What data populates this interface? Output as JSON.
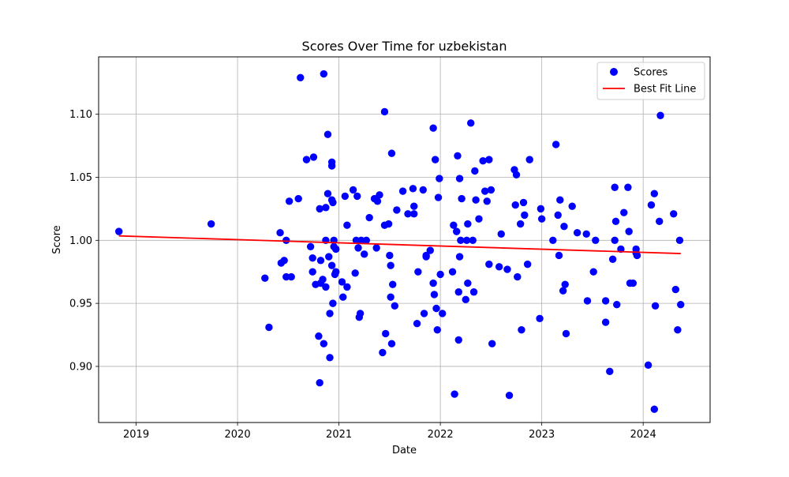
{
  "chart_data": {
    "type": "scatter",
    "title": "Scores Over Time for uzbekistan",
    "xlabel": "Date",
    "ylabel": "Score",
    "xlim": [
      2018.63,
      2024.66
    ],
    "ylim": [
      0.8555,
      1.1455
    ],
    "xticks": [
      2019,
      2020,
      2021,
      2022,
      2023,
      2024
    ],
    "xtick_labels": [
      "2019",
      "2020",
      "2021",
      "2022",
      "2023",
      "2024"
    ],
    "yticks": [
      0.9,
      0.95,
      1.0,
      1.05,
      1.1
    ],
    "ytick_labels": [
      "0.90",
      "0.95",
      "1.00",
      "1.05",
      "1.10"
    ],
    "grid": true,
    "legend_position": "top-right",
    "legend": [
      {
        "label": "Scores",
        "marker": "circle",
        "color": "#0000ff"
      },
      {
        "label": "Best Fit Line",
        "marker": "line",
        "color": "#ff0000"
      }
    ],
    "series": [
      {
        "name": "Scores",
        "kind": "scatter",
        "color": "#0000ff",
        "points": [
          [
            2018.83,
            1.007
          ],
          [
            2019.74,
            1.013
          ],
          [
            2020.27,
            0.97
          ],
          [
            2020.31,
            0.931
          ],
          [
            2020.42,
            1.006
          ],
          [
            2020.43,
            0.982
          ],
          [
            2020.46,
            0.984
          ],
          [
            2020.48,
            1.0
          ],
          [
            2020.48,
            0.971
          ],
          [
            2020.51,
            1.031
          ],
          [
            2020.53,
            0.971
          ],
          [
            2020.6,
            1.033
          ],
          [
            2020.62,
            1.129
          ],
          [
            2020.68,
            1.064
          ],
          [
            2020.72,
            0.995
          ],
          [
            2020.74,
            0.975
          ],
          [
            2020.74,
            0.986
          ],
          [
            2020.75,
            1.066
          ],
          [
            2020.77,
            0.965
          ],
          [
            2020.8,
            0.924
          ],
          [
            2020.81,
            0.887
          ],
          [
            2020.81,
            1.025
          ],
          [
            2020.82,
            0.966
          ],
          [
            2020.82,
            0.984
          ],
          [
            2020.84,
            0.969
          ],
          [
            2020.85,
            0.918
          ],
          [
            2020.85,
            1.132
          ],
          [
            2020.87,
            0.963
          ],
          [
            2020.87,
            1.026
          ],
          [
            2020.87,
            1.0
          ],
          [
            2020.89,
            1.084
          ],
          [
            2020.89,
            1.037
          ],
          [
            2020.9,
            0.987
          ],
          [
            2020.91,
            0.907
          ],
          [
            2020.91,
            0.942
          ],
          [
            2020.93,
            1.062
          ],
          [
            2020.93,
            1.059
          ],
          [
            2020.93,
            1.032
          ],
          [
            2020.93,
            0.98
          ],
          [
            2020.94,
            1.03
          ],
          [
            2020.94,
            0.95
          ],
          [
            2020.95,
            0.995
          ],
          [
            2020.95,
            1.0
          ],
          [
            2020.96,
            0.973
          ],
          [
            2020.97,
            0.975
          ],
          [
            2020.97,
            0.993
          ],
          [
            2021.03,
            0.967
          ],
          [
            2021.04,
            0.955
          ],
          [
            2021.06,
            1.035
          ],
          [
            2021.08,
            0.963
          ],
          [
            2021.08,
            1.012
          ],
          [
            2021.14,
            1.04
          ],
          [
            2021.16,
            0.974
          ],
          [
            2021.17,
            1.0
          ],
          [
            2021.18,
            1.035
          ],
          [
            2021.19,
            0.994
          ],
          [
            2021.2,
            0.939
          ],
          [
            2021.21,
            0.942
          ],
          [
            2021.22,
            1.0
          ],
          [
            2021.25,
            0.989
          ],
          [
            2021.27,
            1.0
          ],
          [
            2021.3,
            1.018
          ],
          [
            2021.35,
            1.033
          ],
          [
            2021.37,
            0.994
          ],
          [
            2021.38,
            1.031
          ],
          [
            2021.4,
            1.036
          ],
          [
            2021.43,
            0.911
          ],
          [
            2021.45,
            1.102
          ],
          [
            2021.45,
            1.012
          ],
          [
            2021.46,
            0.926
          ],
          [
            2021.49,
            1.013
          ],
          [
            2021.5,
            0.988
          ],
          [
            2021.51,
            0.98
          ],
          [
            2021.51,
            0.955
          ],
          [
            2021.52,
            1.069
          ],
          [
            2021.52,
            0.918
          ],
          [
            2021.53,
            0.965
          ],
          [
            2021.55,
            0.948
          ],
          [
            2021.57,
            1.024
          ],
          [
            2021.63,
            1.039
          ],
          [
            2021.68,
            1.021
          ],
          [
            2021.73,
            1.041
          ],
          [
            2021.74,
            1.021
          ],
          [
            2021.74,
            1.027
          ],
          [
            2021.77,
            0.934
          ],
          [
            2021.78,
            0.975
          ],
          [
            2021.83,
            1.04
          ],
          [
            2021.84,
            0.942
          ],
          [
            2021.86,
            0.988
          ],
          [
            2021.86,
            0.987
          ],
          [
            2021.9,
            0.992
          ],
          [
            2021.93,
            1.089
          ],
          [
            2021.93,
            0.966
          ],
          [
            2021.94,
            0.957
          ],
          [
            2021.95,
            1.064
          ],
          [
            2021.96,
            0.946
          ],
          [
            2021.97,
            0.929
          ],
          [
            2021.98,
            1.034
          ],
          [
            2021.99,
            1.049
          ],
          [
            2022.0,
            0.973
          ],
          [
            2022.02,
            0.942
          ],
          [
            2022.12,
            0.975
          ],
          [
            2022.13,
            1.012
          ],
          [
            2022.14,
            0.878
          ],
          [
            2022.16,
            1.007
          ],
          [
            2022.17,
            1.067
          ],
          [
            2022.18,
            0.959
          ],
          [
            2022.18,
            0.921
          ],
          [
            2022.19,
            1.049
          ],
          [
            2022.19,
            0.987
          ],
          [
            2022.2,
            1.0
          ],
          [
            2022.21,
            1.033
          ],
          [
            2022.25,
            0.953
          ],
          [
            2022.26,
            1.0
          ],
          [
            2022.27,
            1.013
          ],
          [
            2022.27,
            0.966
          ],
          [
            2022.3,
            1.093
          ],
          [
            2022.32,
            1.0
          ],
          [
            2022.33,
            0.959
          ],
          [
            2022.34,
            1.055
          ],
          [
            2022.35,
            1.032
          ],
          [
            2022.38,
            1.017
          ],
          [
            2022.42,
            1.063
          ],
          [
            2022.44,
            1.039
          ],
          [
            2022.46,
            1.031
          ],
          [
            2022.48,
            1.064
          ],
          [
            2022.48,
            0.981
          ],
          [
            2022.5,
            1.04
          ],
          [
            2022.51,
            0.918
          ],
          [
            2022.58,
            0.979
          ],
          [
            2022.6,
            1.005
          ],
          [
            2022.66,
            0.977
          ],
          [
            2022.68,
            0.877
          ],
          [
            2022.73,
            1.056
          ],
          [
            2022.74,
            1.028
          ],
          [
            2022.75,
            1.052
          ],
          [
            2022.76,
            0.971
          ],
          [
            2022.79,
            1.013
          ],
          [
            2022.8,
            0.929
          ],
          [
            2022.82,
            1.03
          ],
          [
            2022.83,
            1.02
          ],
          [
            2022.86,
            0.981
          ],
          [
            2022.88,
            1.064
          ],
          [
            2022.98,
            0.938
          ],
          [
            2022.99,
            1.025
          ],
          [
            2023.0,
            1.017
          ],
          [
            2023.11,
            1.0
          ],
          [
            2023.14,
            1.076
          ],
          [
            2023.16,
            1.02
          ],
          [
            2023.17,
            0.988
          ],
          [
            2023.18,
            1.032
          ],
          [
            2023.21,
            0.96
          ],
          [
            2023.22,
            1.011
          ],
          [
            2023.23,
            0.965
          ],
          [
            2023.24,
            0.926
          ],
          [
            2023.3,
            1.027
          ],
          [
            2023.35,
            1.006
          ],
          [
            2023.44,
            1.005
          ],
          [
            2023.45,
            0.952
          ],
          [
            2023.51,
            0.975
          ],
          [
            2023.53,
            1.0
          ],
          [
            2023.63,
            0.952
          ],
          [
            2023.63,
            0.935
          ],
          [
            2023.67,
            0.896
          ],
          [
            2023.7,
            0.985
          ],
          [
            2023.72,
            1.042
          ],
          [
            2023.72,
            1.0
          ],
          [
            2023.73,
            1.015
          ],
          [
            2023.74,
            0.949
          ],
          [
            2023.78,
            0.993
          ],
          [
            2023.81,
            1.022
          ],
          [
            2023.85,
            1.042
          ],
          [
            2023.86,
            1.007
          ],
          [
            2023.87,
            0.966
          ],
          [
            2023.9,
            0.966
          ],
          [
            2023.93,
            0.993
          ],
          [
            2023.93,
            0.99
          ],
          [
            2023.94,
            0.988
          ],
          [
            2024.05,
            0.901
          ],
          [
            2024.08,
            1.028
          ],
          [
            2024.11,
            1.037
          ],
          [
            2024.11,
            0.866
          ],
          [
            2024.12,
            0.948
          ],
          [
            2024.16,
            1.015
          ],
          [
            2024.17,
            1.099
          ],
          [
            2024.3,
            1.021
          ],
          [
            2024.32,
            0.961
          ],
          [
            2024.34,
            0.929
          ],
          [
            2024.36,
            1.0
          ],
          [
            2024.37,
            0.949
          ]
        ]
      },
      {
        "name": "Best Fit Line",
        "kind": "line",
        "color": "#ff0000",
        "points": [
          [
            2018.83,
            1.0035
          ],
          [
            2024.37,
            0.9895
          ]
        ]
      }
    ]
  }
}
